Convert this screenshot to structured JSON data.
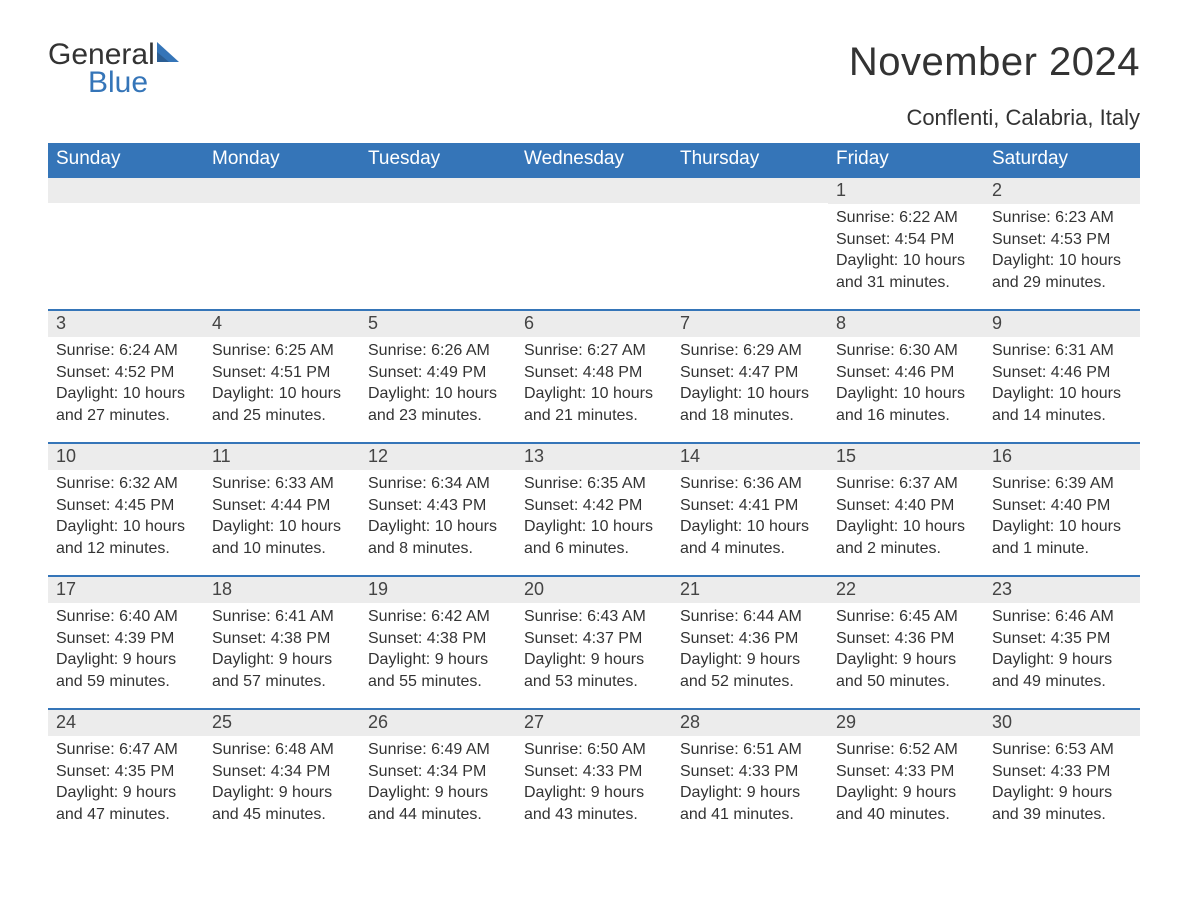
{
  "brand": {
    "word1": "General",
    "word2": "Blue",
    "accent_color": "#3575b8"
  },
  "title": "November 2024",
  "location": "Conflenti, Calabria, Italy",
  "header_bg": "#3575b8",
  "header_fg": "#ffffff",
  "daynum_bg": "#ececec",
  "daynum_border": "#3575b8",
  "text_color": "#333333",
  "body_fontsize": 16,
  "header_fontsize": 19,
  "title_fontsize": 40,
  "location_fontsize": 22,
  "day_names": [
    "Sunday",
    "Monday",
    "Tuesday",
    "Wednesday",
    "Thursday",
    "Friday",
    "Saturday"
  ],
  "weeks": [
    [
      null,
      null,
      null,
      null,
      null,
      {
        "n": "1",
        "sunrise": "6:22 AM",
        "sunset": "4:54 PM",
        "daylight": "10 hours and 31 minutes."
      },
      {
        "n": "2",
        "sunrise": "6:23 AM",
        "sunset": "4:53 PM",
        "daylight": "10 hours and 29 minutes."
      }
    ],
    [
      {
        "n": "3",
        "sunrise": "6:24 AM",
        "sunset": "4:52 PM",
        "daylight": "10 hours and 27 minutes."
      },
      {
        "n": "4",
        "sunrise": "6:25 AM",
        "sunset": "4:51 PM",
        "daylight": "10 hours and 25 minutes."
      },
      {
        "n": "5",
        "sunrise": "6:26 AM",
        "sunset": "4:49 PM",
        "daylight": "10 hours and 23 minutes."
      },
      {
        "n": "6",
        "sunrise": "6:27 AM",
        "sunset": "4:48 PM",
        "daylight": "10 hours and 21 minutes."
      },
      {
        "n": "7",
        "sunrise": "6:29 AM",
        "sunset": "4:47 PM",
        "daylight": "10 hours and 18 minutes."
      },
      {
        "n": "8",
        "sunrise": "6:30 AM",
        "sunset": "4:46 PM",
        "daylight": "10 hours and 16 minutes."
      },
      {
        "n": "9",
        "sunrise": "6:31 AM",
        "sunset": "4:46 PM",
        "daylight": "10 hours and 14 minutes."
      }
    ],
    [
      {
        "n": "10",
        "sunrise": "6:32 AM",
        "sunset": "4:45 PM",
        "daylight": "10 hours and 12 minutes."
      },
      {
        "n": "11",
        "sunrise": "6:33 AM",
        "sunset": "4:44 PM",
        "daylight": "10 hours and 10 minutes."
      },
      {
        "n": "12",
        "sunrise": "6:34 AM",
        "sunset": "4:43 PM",
        "daylight": "10 hours and 8 minutes."
      },
      {
        "n": "13",
        "sunrise": "6:35 AM",
        "sunset": "4:42 PM",
        "daylight": "10 hours and 6 minutes."
      },
      {
        "n": "14",
        "sunrise": "6:36 AM",
        "sunset": "4:41 PM",
        "daylight": "10 hours and 4 minutes."
      },
      {
        "n": "15",
        "sunrise": "6:37 AM",
        "sunset": "4:40 PM",
        "daylight": "10 hours and 2 minutes."
      },
      {
        "n": "16",
        "sunrise": "6:39 AM",
        "sunset": "4:40 PM",
        "daylight": "10 hours and 1 minute."
      }
    ],
    [
      {
        "n": "17",
        "sunrise": "6:40 AM",
        "sunset": "4:39 PM",
        "daylight": "9 hours and 59 minutes."
      },
      {
        "n": "18",
        "sunrise": "6:41 AM",
        "sunset": "4:38 PM",
        "daylight": "9 hours and 57 minutes."
      },
      {
        "n": "19",
        "sunrise": "6:42 AM",
        "sunset": "4:38 PM",
        "daylight": "9 hours and 55 minutes."
      },
      {
        "n": "20",
        "sunrise": "6:43 AM",
        "sunset": "4:37 PM",
        "daylight": "9 hours and 53 minutes."
      },
      {
        "n": "21",
        "sunrise": "6:44 AM",
        "sunset": "4:36 PM",
        "daylight": "9 hours and 52 minutes."
      },
      {
        "n": "22",
        "sunrise": "6:45 AM",
        "sunset": "4:36 PM",
        "daylight": "9 hours and 50 minutes."
      },
      {
        "n": "23",
        "sunrise": "6:46 AM",
        "sunset": "4:35 PM",
        "daylight": "9 hours and 49 minutes."
      }
    ],
    [
      {
        "n": "24",
        "sunrise": "6:47 AM",
        "sunset": "4:35 PM",
        "daylight": "9 hours and 47 minutes."
      },
      {
        "n": "25",
        "sunrise": "6:48 AM",
        "sunset": "4:34 PM",
        "daylight": "9 hours and 45 minutes."
      },
      {
        "n": "26",
        "sunrise": "6:49 AM",
        "sunset": "4:34 PM",
        "daylight": "9 hours and 44 minutes."
      },
      {
        "n": "27",
        "sunrise": "6:50 AM",
        "sunset": "4:33 PM",
        "daylight": "9 hours and 43 minutes."
      },
      {
        "n": "28",
        "sunrise": "6:51 AM",
        "sunset": "4:33 PM",
        "daylight": "9 hours and 41 minutes."
      },
      {
        "n": "29",
        "sunrise": "6:52 AM",
        "sunset": "4:33 PM",
        "daylight": "9 hours and 40 minutes."
      },
      {
        "n": "30",
        "sunrise": "6:53 AM",
        "sunset": "4:33 PM",
        "daylight": "9 hours and 39 minutes."
      }
    ]
  ],
  "labels": {
    "sunrise": "Sunrise: ",
    "sunset": "Sunset: ",
    "daylight": "Daylight: "
  }
}
